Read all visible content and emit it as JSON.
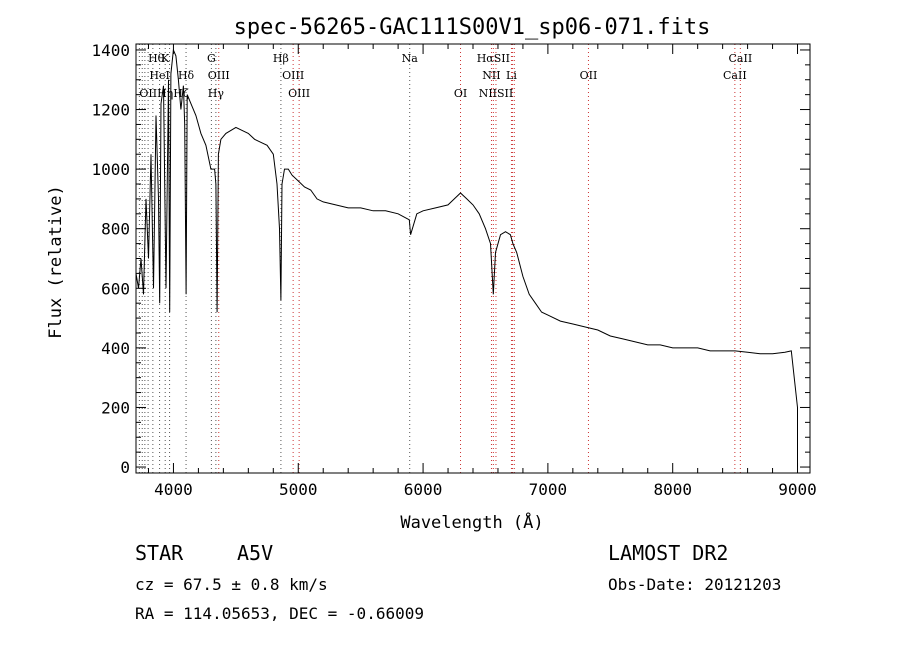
{
  "chart_data": {
    "type": "line",
    "title": "spec-56265-GAC111S00V1_sp06-071.fits",
    "xlabel": "Wavelength (Å)",
    "ylabel": "Flux (relative)",
    "xlim": [
      3700,
      9100
    ],
    "ylim": [
      -20,
      1420
    ],
    "xticks": [
      4000,
      5000,
      6000,
      7000,
      8000,
      9000
    ],
    "yticks": [
      0,
      200,
      400,
      600,
      800,
      1000,
      1200,
      1400
    ],
    "grid": false,
    "series": [
      {
        "x": [
          3700,
          3720,
          3740,
          3760,
          3780,
          3800,
          3820,
          3840,
          3860,
          3880,
          3890,
          3900,
          3920,
          3940,
          3960,
          3970,
          3980,
          4000,
          4020,
          4040,
          4060,
          4080,
          4090,
          4101,
          4110,
          4140,
          4180,
          4220,
          4260,
          4300,
          4330,
          4340,
          4350,
          4360,
          4380,
          4420,
          4460,
          4500,
          4550,
          4600,
          4650,
          4700,
          4750,
          4800,
          4830,
          4850,
          4861,
          4870,
          4890,
          4920,
          4950,
          5000,
          5050,
          5100,
          5150,
          5200,
          5300,
          5400,
          5500,
          5600,
          5700,
          5800,
          5890,
          5900,
          5950,
          6000,
          6100,
          6200,
          6250,
          6300,
          6350,
          6400,
          6450,
          6500,
          6540,
          6563,
          6580,
          6620,
          6660,
          6700,
          6720,
          6750,
          6800,
          6850,
          6900,
          6950,
          7000,
          7100,
          7200,
          7300,
          7400,
          7500,
          7600,
          7700,
          7800,
          7900,
          8000,
          8100,
          8200,
          8300,
          8400,
          8500,
          8600,
          8700,
          8800,
          8900,
          8950,
          9000
        ],
        "values": [
          650,
          600,
          700,
          580,
          900,
          700,
          1050,
          600,
          1180,
          900,
          550,
          1220,
          1280,
          600,
          1300,
          520,
          1320,
          1400,
          1380,
          1300,
          1200,
          1280,
          1150,
          580,
          1250,
          1220,
          1180,
          1120,
          1080,
          1000,
          1000,
          950,
          520,
          1050,
          1100,
          1120,
          1130,
          1140,
          1130,
          1120,
          1100,
          1090,
          1080,
          1050,
          950,
          800,
          560,
          950,
          1000,
          1000,
          980,
          960,
          940,
          930,
          900,
          890,
          880,
          870,
          870,
          860,
          860,
          850,
          830,
          780,
          850,
          860,
          870,
          880,
          900,
          920,
          900,
          880,
          850,
          800,
          750,
          580,
          720,
          780,
          790,
          780,
          750,
          720,
          640,
          580,
          550,
          520,
          510,
          490,
          480,
          470,
          460,
          440,
          430,
          420,
          410,
          410,
          400,
          400,
          400,
          390,
          390,
          390,
          385,
          380,
          380,
          385,
          390,
          200
        ]
      }
    ],
    "line_markers": [
      {
        "label": "Hθ",
        "wavelength": 3797,
        "row": 0
      },
      {
        "label": "K",
        "wavelength": 3934,
        "row": 0
      },
      {
        "label": "G",
        "wavelength": 4304,
        "row": 0
      },
      {
        "label": "Hβ",
        "wavelength": 4861,
        "row": 0
      },
      {
        "label": "Na",
        "wavelength": 5893,
        "row": 0
      },
      {
        "label": "HαSII",
        "wavelength": 6563,
        "row": 0
      },
      {
        "label": "CaII",
        "wavelength": 8542,
        "row": 0
      },
      {
        "label": "HeI",
        "wavelength": 3889,
        "row": 1
      },
      {
        "label": "Hδ",
        "wavelength": 4101,
        "row": 1
      },
      {
        "label": "OIII",
        "wavelength": 4363,
        "row": 1
      },
      {
        "label": "OIII",
        "wavelength": 4959,
        "row": 1
      },
      {
        "label": "NII",
        "wavelength": 6548,
        "row": 1
      },
      {
        "label": "Li",
        "wavelength": 6708,
        "row": 1
      },
      {
        "label": "OII",
        "wavelength": 7325,
        "row": 1
      },
      {
        "label": "CaII",
        "wavelength": 8498,
        "row": 1
      },
      {
        "label": "OIIHηHζ",
        "wavelength": 3727,
        "row": 2
      },
      {
        "label": "Hγ",
        "wavelength": 4340,
        "row": 2
      },
      {
        "label": "OIII",
        "wavelength": 5007,
        "row": 2
      },
      {
        "label": "OI",
        "wavelength": 6300,
        "row": 2
      },
      {
        "label": "NIISII",
        "wavelength": 6584,
        "row": 2
      }
    ],
    "marker_lines": [
      {
        "wavelength": 3727,
        "color": "#555555"
      },
      {
        "wavelength": 3750,
        "color": "#555555"
      },
      {
        "wavelength": 3771,
        "color": "#555555"
      },
      {
        "wavelength": 3797,
        "color": "#555555"
      },
      {
        "wavelength": 3835,
        "color": "#555555"
      },
      {
        "wavelength": 3889,
        "color": "#555555"
      },
      {
        "wavelength": 3934,
        "color": "#555555"
      },
      {
        "wavelength": 3969,
        "color": "#555555"
      },
      {
        "wavelength": 4101,
        "color": "#555555"
      },
      {
        "wavelength": 4304,
        "color": "#555555"
      },
      {
        "wavelength": 4340,
        "color": "#555555"
      },
      {
        "wavelength": 4363,
        "color": "#cc3333"
      },
      {
        "wavelength": 4861,
        "color": "#555555"
      },
      {
        "wavelength": 4959,
        "color": "#cc3333"
      },
      {
        "wavelength": 5007,
        "color": "#cc3333"
      },
      {
        "wavelength": 5893,
        "color": "#555555"
      },
      {
        "wavelength": 6300,
        "color": "#cc3333"
      },
      {
        "wavelength": 6548,
        "color": "#cc3333"
      },
      {
        "wavelength": 6563,
        "color": "#cc3333"
      },
      {
        "wavelength": 6584,
        "color": "#cc3333"
      },
      {
        "wavelength": 6708,
        "color": "#cc3333"
      },
      {
        "wavelength": 6717,
        "color": "#cc3333"
      },
      {
        "wavelength": 6731,
        "color": "#cc3333"
      },
      {
        "wavelength": 7325,
        "color": "#cc3333"
      },
      {
        "wavelength": 8498,
        "color": "#cc3333"
      },
      {
        "wavelength": 8542,
        "color": "#cc3333"
      }
    ]
  },
  "info": {
    "object_class": "STAR",
    "subclass": "A5V",
    "survey": "LAMOST DR2",
    "cz": "cz = 67.5 ± 0.8 km/s",
    "obs_date": "Obs-Date: 20121203",
    "coords": "RA = 114.05653, DEC =  -0.66009"
  }
}
